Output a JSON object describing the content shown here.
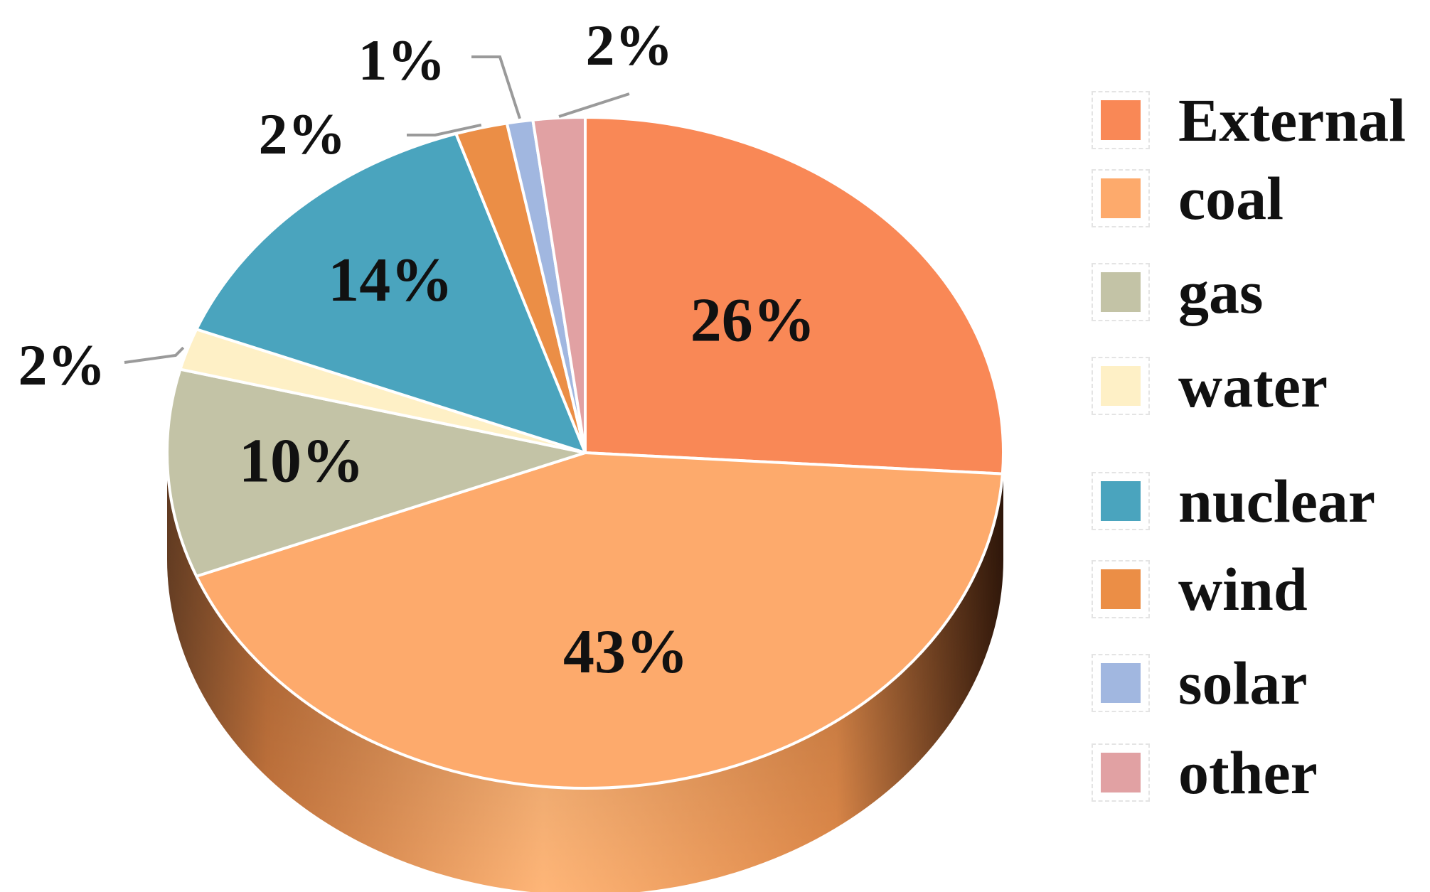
{
  "colors": {
    "External": "#F98856",
    "coal": "#FDAA6C",
    "gas": "#C3C3A6",
    "water": "#FEF0C6",
    "nuclear": "#4AA4BE",
    "wind": "#EB8E46",
    "solar": "#A1B7E0",
    "other": "#E1A1A3",
    "side_dark": "#4a2410",
    "side_light": "#ffb678",
    "outline": "#ffffff",
    "leader": "#9a9a9a"
  },
  "chart_data": {
    "type": "pie",
    "title": "",
    "style": "3d-tilted",
    "categories": [
      "External",
      "coal",
      "gas",
      "water",
      "nuclear",
      "wind",
      "solar",
      "other"
    ],
    "values": [
      26,
      43,
      10,
      2,
      14,
      2,
      1,
      2
    ],
    "labels": [
      "26%",
      "43%",
      "10%",
      "2%",
      "14%",
      "2%",
      "1%",
      "2%"
    ],
    "start": "12 o'clock, clockwise",
    "legend_position": "right"
  },
  "legend": {
    "items": [
      {
        "label": "External",
        "color": "#F98856"
      },
      {
        "label": "coal",
        "color": "#FDAA6C"
      },
      {
        "label": "gas",
        "color": "#C3C3A6"
      },
      {
        "label": "water",
        "color": "#FEF0C6"
      },
      {
        "label": "nuclear",
        "color": "#4AA4BE"
      },
      {
        "label": "wind",
        "color": "#EB8E46"
      },
      {
        "label": "solar",
        "color": "#A1B7E0"
      },
      {
        "label": "other",
        "color": "#E1A1A3"
      }
    ]
  }
}
